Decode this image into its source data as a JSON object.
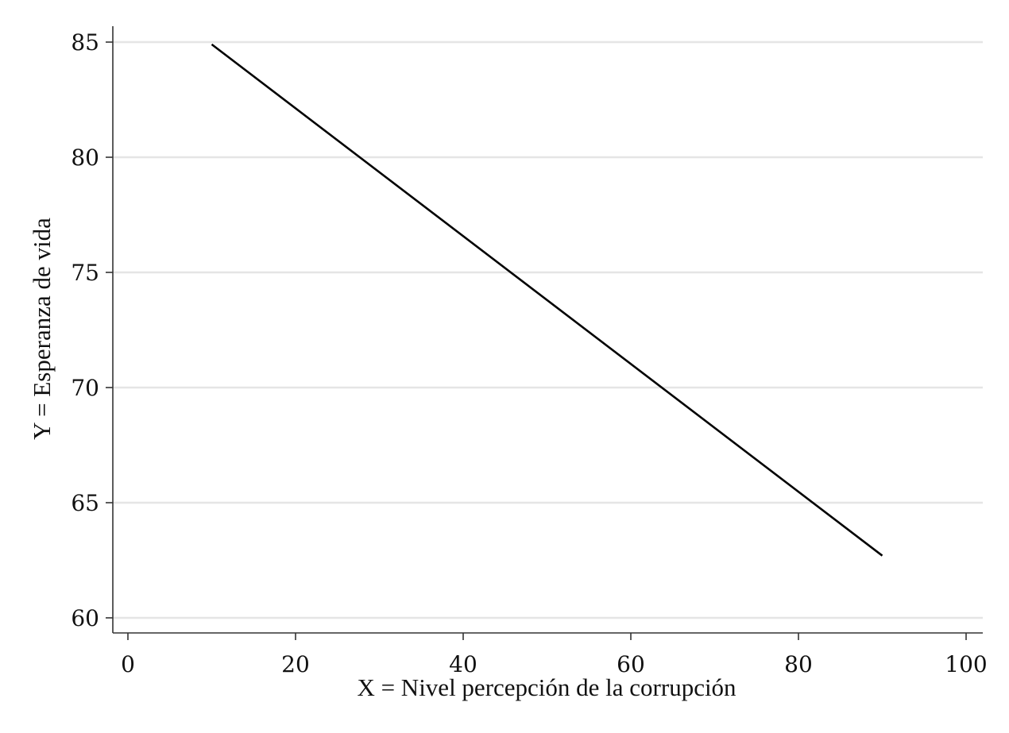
{
  "chart_data": {
    "type": "line",
    "title": "",
    "xlabel": "X = Nivel percepción de la corrupción",
    "ylabel": "Y = Esperanza de vida",
    "xlim": [
      0,
      100
    ],
    "ylim": [
      60,
      85
    ],
    "x_ticks": [
      0,
      20,
      40,
      60,
      80,
      100
    ],
    "y_ticks": [
      60,
      65,
      70,
      75,
      80,
      85
    ],
    "x_tick_labels": [
      "0",
      "20",
      "40",
      "60",
      "80",
      "100"
    ],
    "y_tick_labels": [
      "60",
      "65",
      "70",
      "75",
      "80",
      "85"
    ],
    "grid": "horizontal",
    "legend": "none",
    "series": [
      {
        "x": [
          10,
          90
        ],
        "y": [
          84.9,
          62.7
        ],
        "color": "#000000"
      }
    ],
    "colors": {
      "line": "#000000",
      "grid": "#e5e5e5",
      "axis": "#333333"
    }
  }
}
